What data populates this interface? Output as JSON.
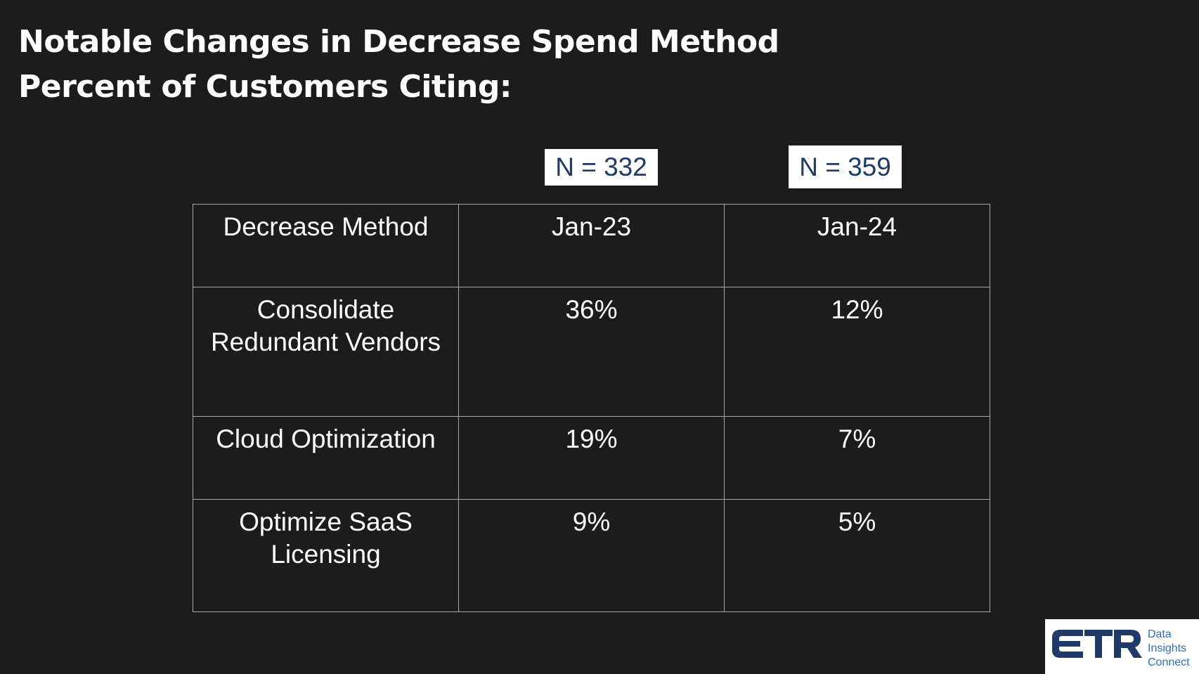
{
  "title": {
    "line1": "Notable Changes in Decrease Spend Method",
    "line2": "Percent of Customers Citing:"
  },
  "sample_sizes": [
    {
      "label": "N = 332"
    },
    {
      "label": "N = 359"
    }
  ],
  "table": {
    "headers": [
      "Decrease Method",
      "Jan-23",
      "Jan-24"
    ],
    "rows": [
      {
        "method_line1": "Consolidate",
        "method_line2": "Redundant Vendors",
        "jan23": "36%",
        "jan24": "12%"
      },
      {
        "method_line1": "Cloud Optimization",
        "method_line2": "",
        "jan23": "19%",
        "jan24": "7%"
      },
      {
        "method_line1": "Optimize SaaS",
        "method_line2": "Licensing",
        "jan23": "9%",
        "jan24": "5%"
      }
    ]
  },
  "logo": {
    "mark": "ETR",
    "tagline_line1": "Data",
    "tagline_line2": "Insights",
    "tagline_line3": "Connect",
    "color": "#1f3a66",
    "accent": "#2f6fb8"
  },
  "colors": {
    "background": "#1c1c1c",
    "text": "#ffffff",
    "badge_text": "#1f3a66",
    "table_border": "#a8a8a8"
  }
}
